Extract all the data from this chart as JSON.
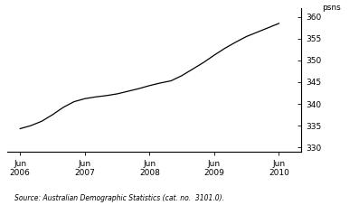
{
  "x_values": [
    2006.5,
    2006.667,
    2006.833,
    2007.0,
    2007.167,
    2007.333,
    2007.5,
    2007.667,
    2007.833,
    2008.0,
    2008.167,
    2008.333,
    2008.5,
    2008.667,
    2008.833,
    2009.0,
    2009.167,
    2009.333,
    2009.5,
    2009.667,
    2009.833,
    2010.0,
    2010.167,
    2010.333,
    2010.5
  ],
  "y_values": [
    334.3,
    335.0,
    336.0,
    337.5,
    339.2,
    340.5,
    341.2,
    341.6,
    341.9,
    342.3,
    342.9,
    343.5,
    344.2,
    344.8,
    345.3,
    346.5,
    348.0,
    349.5,
    351.2,
    352.8,
    354.2,
    355.5,
    356.5,
    357.5,
    358.5
  ],
  "ylim": [
    329.0,
    362.0
  ],
  "yticks": [
    330,
    335,
    340,
    345,
    350,
    355,
    360
  ],
  "ylabel": "psns",
  "xtick_positions": [
    2006.5,
    2007.5,
    2008.5,
    2009.5,
    2010.5
  ],
  "xtick_labels": [
    "Jun\n2006",
    "Jun\n2007",
    "Jun\n2008",
    "Jun\n2009",
    "Jun\n2010"
  ],
  "xlim": [
    2006.3,
    2010.85
  ],
  "source_text": "Source: Australian Demographic Statistics (cat. no.  3101.0).",
  "line_color": "#000000",
  "line_width": 0.9,
  "background_color": "#ffffff"
}
